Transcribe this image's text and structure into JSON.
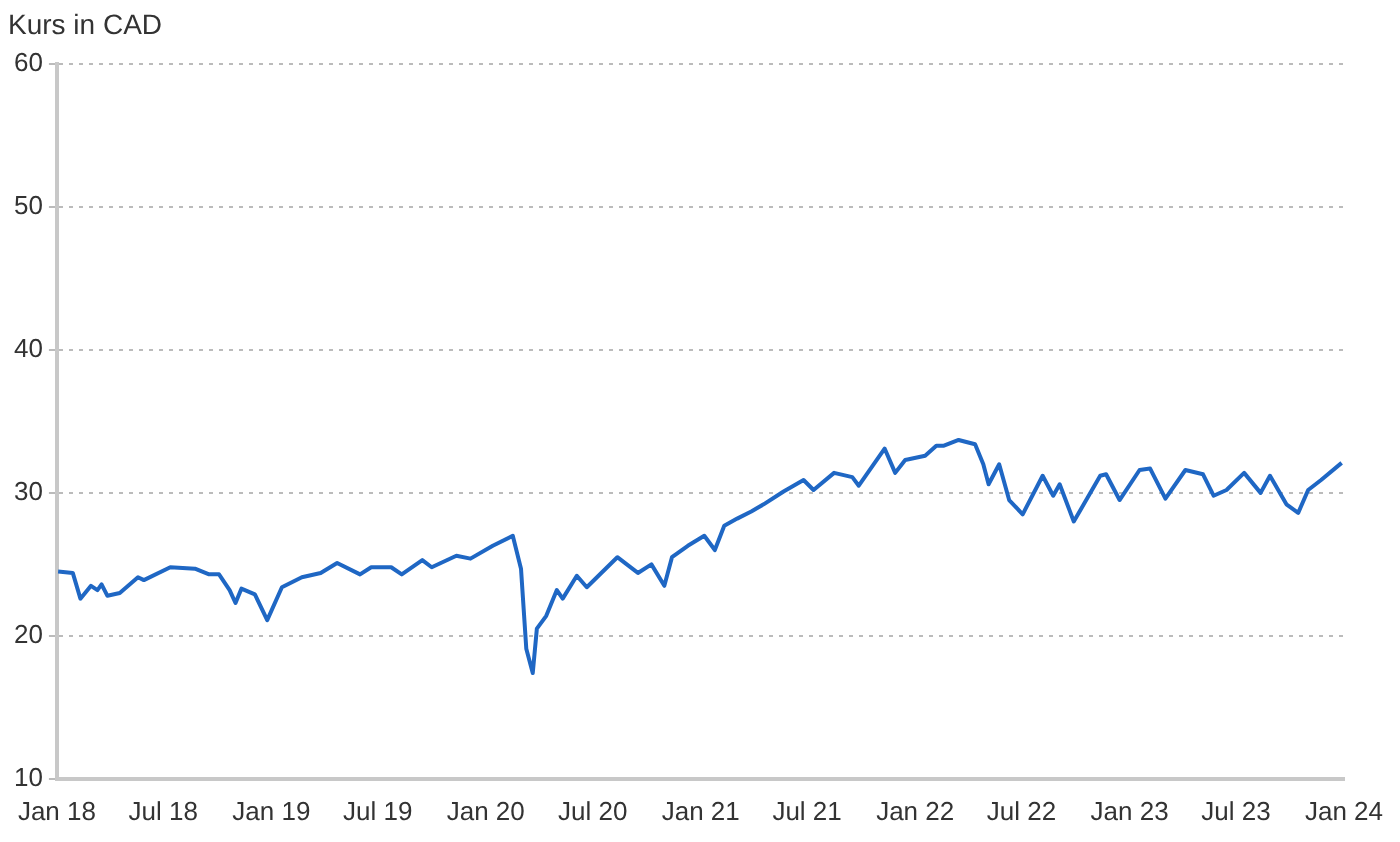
{
  "chart_data": {
    "type": "line",
    "ylabel": "Kurs in CAD",
    "x": [
      "2018-01-03",
      "2018-01-28",
      "2018-02-10",
      "2018-02-28",
      "2018-03-11",
      "2018-03-18",
      "2018-03-28",
      "2018-04-18",
      "2018-05-19",
      "2018-05-29",
      "2018-07-13",
      "2018-08-24",
      "2018-09-17",
      "2018-10-04",
      "2018-10-22",
      "2018-11-01",
      "2018-11-11",
      "2018-12-04",
      "2018-12-25",
      "2019-01-19",
      "2019-02-22",
      "2019-03-26",
      "2019-04-23",
      "2019-06-01",
      "2019-06-20",
      "2019-07-24",
      "2019-08-11",
      "2019-09-15",
      "2019-10-01",
      "2019-11-12",
      "2019-12-06",
      "2020-01-13",
      "2020-02-16",
      "2020-03-01",
      "2020-03-10",
      "2020-03-21",
      "2020-03-28",
      "2020-04-13",
      "2020-05-01",
      "2020-05-11",
      "2020-06-04",
      "2020-06-21",
      "2020-08-12",
      "2020-09-16",
      "2020-10-09",
      "2020-10-31",
      "2020-11-13",
      "2020-12-10",
      "2021-01-07",
      "2021-01-25",
      "2021-02-10",
      "2021-03-04",
      "2021-03-28",
      "2021-04-18",
      "2021-05-22",
      "2021-06-25",
      "2021-07-12",
      "2021-08-16",
      "2021-09-16",
      "2021-09-27",
      "2021-11-10",
      "2021-11-28",
      "2021-12-15",
      "2022-01-18",
      "2022-02-06",
      "2022-02-19",
      "2022-03-16",
      "2022-04-13",
      "2022-04-27",
      "2022-05-06",
      "2022-05-24",
      "2022-06-10",
      "2022-07-03",
      "2022-08-06",
      "2022-08-24",
      "2022-09-04",
      "2022-09-28",
      "2022-10-15",
      "2022-11-12",
      "2022-11-22",
      "2022-12-15",
      "2023-01-18",
      "2023-02-05",
      "2023-03-03",
      "2023-04-06",
      "2023-05-06",
      "2023-05-24",
      "2023-06-15",
      "2023-07-15",
      "2023-08-12",
      "2023-08-28",
      "2023-09-25",
      "2023-10-15",
      "2023-11-01",
      "2023-11-23",
      "2023-12-28"
    ],
    "series": [
      {
        "color": "#1f67c4",
        "values": [
          24.5,
          24.4,
          22.6,
          23.5,
          23.2,
          23.6,
          22.8,
          23.0,
          24.1,
          23.9,
          24.8,
          24.7,
          24.3,
          24.3,
          23.2,
          22.3,
          23.3,
          22.9,
          21.1,
          23.4,
          24.1,
          24.4,
          25.1,
          24.3,
          24.8,
          24.8,
          24.3,
          25.3,
          24.8,
          25.6,
          25.4,
          26.3,
          27.0,
          24.7,
          19.1,
          17.4,
          20.5,
          21.4,
          23.2,
          22.6,
          24.2,
          23.4,
          25.5,
          24.4,
          25.0,
          23.5,
          25.5,
          26.3,
          27.0,
          26.0,
          27.7,
          28.2,
          28.7,
          29.2,
          30.1,
          30.9,
          30.2,
          31.4,
          31.1,
          30.5,
          33.1,
          31.4,
          32.3,
          32.6,
          33.3,
          33.3,
          33.7,
          33.4,
          32.0,
          30.6,
          32.0,
          29.5,
          28.5,
          31.2,
          29.8,
          30.6,
          28.0,
          29.2,
          31.2,
          31.3,
          29.5,
          31.6,
          31.7,
          29.6,
          31.6,
          31.3,
          29.8,
          30.2,
          31.4,
          30.0,
          31.2,
          29.2,
          28.6,
          30.2,
          30.9,
          32.1
        ]
      }
    ],
    "xlim": [
      "2018-01",
      "2024-01"
    ],
    "xticks": [
      {
        "value": "2018-01",
        "label": "Jan 18"
      },
      {
        "value": "2018-07",
        "label": "Jul 18"
      },
      {
        "value": "2019-01",
        "label": "Jan 19"
      },
      {
        "value": "2019-07",
        "label": "Jul 19"
      },
      {
        "value": "2020-01",
        "label": "Jan 20"
      },
      {
        "value": "2020-07",
        "label": "Jul 20"
      },
      {
        "value": "2021-01",
        "label": "Jan 21"
      },
      {
        "value": "2021-07",
        "label": "Jul 21"
      },
      {
        "value": "2022-01",
        "label": "Jan 22"
      },
      {
        "value": "2022-07",
        "label": "Jul 22"
      },
      {
        "value": "2023-01",
        "label": "Jan 23"
      },
      {
        "value": "2023-07",
        "label": "Jul 23"
      },
      {
        "value": "2024-01",
        "label": "Jan 24"
      }
    ],
    "ylim": [
      10,
      60
    ],
    "yticks": [
      10,
      20,
      30,
      40,
      50,
      60
    ],
    "grid": "y",
    "legend": false,
    "marker": "none",
    "line_style": "solid"
  }
}
